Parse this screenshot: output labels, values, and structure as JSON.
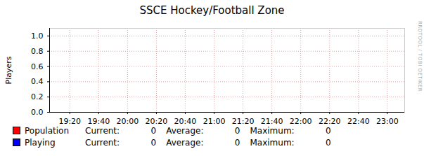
{
  "chart_data": {
    "type": "line",
    "title": "SSCE Hockey/Football Zone",
    "y_label": "Players",
    "watermark": "RRDTOOL / TOBI OETIKER",
    "x": [
      "19:20",
      "19:40",
      "20:00",
      "20:20",
      "20:40",
      "21:00",
      "21:20",
      "21:40",
      "22:00",
      "22:20",
      "22:40",
      "23:00"
    ],
    "xlim": [
      "19:06",
      "23:12"
    ],
    "xticks": [
      "19:20",
      "19:40",
      "20:00",
      "20:20",
      "20:40",
      "21:00",
      "21:20",
      "21:40",
      "22:00",
      "22:20",
      "22:40",
      "23:00"
    ],
    "ylim": [
      0,
      1.1
    ],
    "yticks": [
      {
        "value": 0,
        "label": "0.0"
      },
      {
        "value": 0.2,
        "label": "0.2"
      },
      {
        "value": 0.4,
        "label": "0.4"
      },
      {
        "value": 0.6,
        "label": "0.6"
      },
      {
        "value": 0.8,
        "label": "0.8"
      },
      {
        "value": 1,
        "label": "1.0"
      }
    ],
    "grid": true,
    "stat_labels": [
      "Current:",
      "Average:",
      "Maximum:"
    ],
    "series": [
      {
        "name": "Population",
        "color": "#ff0000",
        "values": [
          0,
          0,
          0,
          0,
          0,
          0,
          0,
          0,
          0,
          0,
          0,
          0
        ],
        "current": 0,
        "average": 0,
        "maximum": 0
      },
      {
        "name": "Playing",
        "color": "#0000ff",
        "values": [
          0,
          0,
          0,
          0,
          0,
          0,
          0,
          0,
          0,
          0,
          0,
          0
        ],
        "current": 0,
        "average": 0,
        "maximum": 0
      }
    ]
  }
}
